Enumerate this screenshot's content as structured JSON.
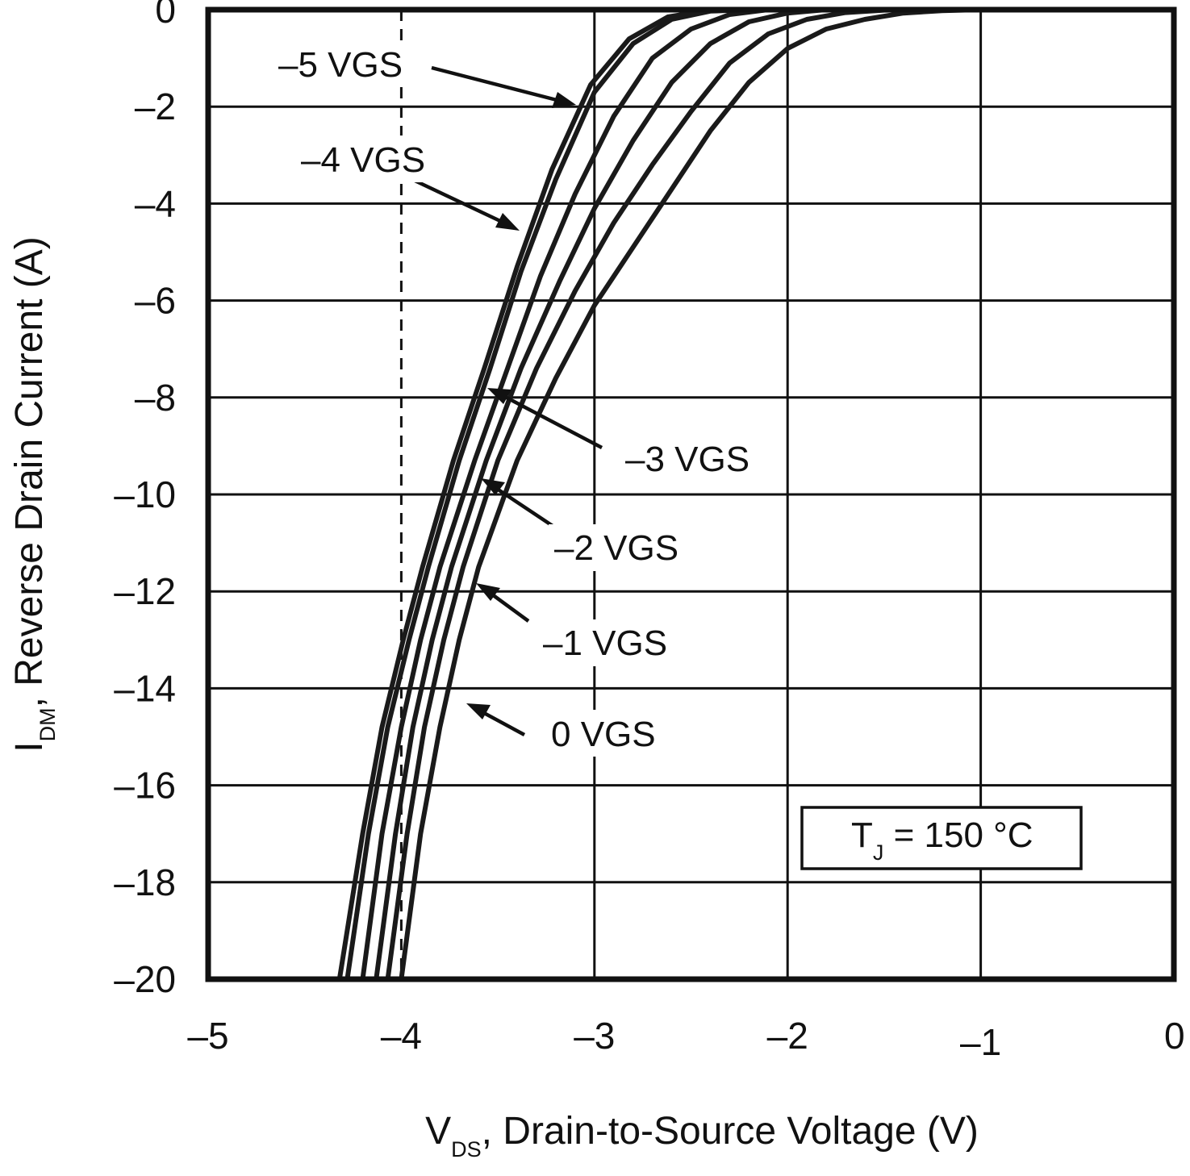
{
  "chart_data": {
    "type": "line",
    "title": "",
    "xlabel": {
      "main": "V",
      "sub": "DS",
      "rest": ", Drain-to-Source Voltage (V)"
    },
    "ylabel": {
      "main": "I",
      "sub": "DM",
      "rest": ", Reverse Drain Current (A)"
    },
    "xlim": [
      -5,
      0
    ],
    "ylim": [
      -20,
      0
    ],
    "grid": true,
    "x_ticks": [
      {
        "value": -5,
        "label": "–5"
      },
      {
        "value": -4,
        "label": "–4"
      },
      {
        "value": -3,
        "label": "–3"
      },
      {
        "value": -2,
        "label": "–2"
      },
      {
        "value": -1,
        "label": "–1"
      },
      {
        "value": 0,
        "label": "0"
      }
    ],
    "y_ticks": [
      {
        "value": 0,
        "label": "0"
      },
      {
        "value": -2,
        "label": "–2"
      },
      {
        "value": -4,
        "label": "–4"
      },
      {
        "value": -6,
        "label": "–6"
      },
      {
        "value": -8,
        "label": "–8"
      },
      {
        "value": -10,
        "label": "–10"
      },
      {
        "value": -12,
        "label": "–12"
      },
      {
        "value": -14,
        "label": "–14"
      },
      {
        "value": -16,
        "label": "–16"
      },
      {
        "value": -18,
        "label": "–18"
      },
      {
        "value": -20,
        "label": "–20"
      }
    ],
    "series": [
      {
        "name": "0 VGS",
        "label": "0 VGS",
        "points": [
          [
            -4.0,
            -20
          ],
          [
            -3.9,
            -17.0
          ],
          [
            -3.8,
            -14.8
          ],
          [
            -3.7,
            -13.0
          ],
          [
            -3.6,
            -11.5
          ],
          [
            -3.4,
            -9.3
          ],
          [
            -3.2,
            -7.6
          ],
          [
            -3.0,
            -6.1
          ],
          [
            -2.8,
            -4.9
          ],
          [
            -2.6,
            -3.7
          ],
          [
            -2.4,
            -2.5
          ],
          [
            -2.2,
            -1.5
          ],
          [
            -2.0,
            -0.8
          ],
          [
            -1.8,
            -0.4
          ],
          [
            -1.6,
            -0.2
          ],
          [
            -1.4,
            -0.07
          ],
          [
            -1.2,
            -0.02
          ],
          [
            -1.0,
            0
          ],
          [
            -0.8,
            0
          ]
        ]
      },
      {
        "name": "-1 VGS",
        "label": "–1 VGS",
        "points": [
          [
            -4.07,
            -20
          ],
          [
            -3.97,
            -17.0
          ],
          [
            -3.88,
            -14.8
          ],
          [
            -3.78,
            -13.0
          ],
          [
            -3.68,
            -11.5
          ],
          [
            -3.5,
            -9.3
          ],
          [
            -3.3,
            -7.4
          ],
          [
            -3.1,
            -5.8
          ],
          [
            -2.9,
            -4.4
          ],
          [
            -2.7,
            -3.2
          ],
          [
            -2.5,
            -2.1
          ],
          [
            -2.3,
            -1.1
          ],
          [
            -2.1,
            -0.5
          ],
          [
            -1.9,
            -0.2
          ],
          [
            -1.7,
            -0.06
          ],
          [
            -1.5,
            -0.01
          ],
          [
            -1.3,
            0
          ]
        ]
      },
      {
        "name": "-2 VGS",
        "label": "–2 VGS",
        "points": [
          [
            -4.13,
            -20
          ],
          [
            -4.03,
            -17.0
          ],
          [
            -3.94,
            -14.8
          ],
          [
            -3.84,
            -13.0
          ],
          [
            -3.74,
            -11.5
          ],
          [
            -3.56,
            -9.3
          ],
          [
            -3.38,
            -7.4
          ],
          [
            -3.18,
            -5.6
          ],
          [
            -3.0,
            -4.1
          ],
          [
            -2.8,
            -2.7
          ],
          [
            -2.6,
            -1.5
          ],
          [
            -2.4,
            -0.7
          ],
          [
            -2.2,
            -0.25
          ],
          [
            -2.0,
            -0.07
          ],
          [
            -1.8,
            0
          ]
        ]
      },
      {
        "name": "-3 VGS",
        "label": "–3 VGS",
        "points": [
          [
            -4.2,
            -20
          ],
          [
            -4.1,
            -17.0
          ],
          [
            -4.0,
            -14.8
          ],
          [
            -3.9,
            -13.0
          ],
          [
            -3.8,
            -11.5
          ],
          [
            -3.62,
            -9.3
          ],
          [
            -3.45,
            -7.4
          ],
          [
            -3.28,
            -5.5
          ],
          [
            -3.1,
            -3.8
          ],
          [
            -2.9,
            -2.2
          ],
          [
            -2.7,
            -1.0
          ],
          [
            -2.5,
            -0.4
          ],
          [
            -2.3,
            -0.1
          ],
          [
            -2.1,
            0
          ]
        ]
      },
      {
        "name": "-4 VGS",
        "label": "–4 VGS",
        "points": [
          [
            -4.28,
            -20
          ],
          [
            -4.17,
            -17.0
          ],
          [
            -4.07,
            -14.8
          ],
          [
            -3.96,
            -13.0
          ],
          [
            -3.86,
            -11.5
          ],
          [
            -3.7,
            -9.3
          ],
          [
            -3.54,
            -7.4
          ],
          [
            -3.38,
            -5.4
          ],
          [
            -3.2,
            -3.5
          ],
          [
            -3.0,
            -1.7
          ],
          [
            -2.8,
            -0.7
          ],
          [
            -2.6,
            -0.2
          ],
          [
            -2.4,
            -0.03
          ],
          [
            -2.2,
            0
          ]
        ]
      },
      {
        "name": "-5 VGS",
        "label": "–5 VGS",
        "points": [
          [
            -4.32,
            -20
          ],
          [
            -4.2,
            -17.0
          ],
          [
            -4.1,
            -14.8
          ],
          [
            -3.99,
            -13.0
          ],
          [
            -3.89,
            -11.5
          ],
          [
            -3.73,
            -9.3
          ],
          [
            -3.57,
            -7.4
          ],
          [
            -3.4,
            -5.3
          ],
          [
            -3.22,
            -3.3
          ],
          [
            -3.02,
            -1.55
          ],
          [
            -2.82,
            -0.6
          ],
          [
            -2.62,
            -0.15
          ],
          [
            -2.42,
            -0.02
          ],
          [
            -2.2,
            0
          ]
        ]
      }
    ],
    "annotations": [
      {
        "text": "–5 VGS",
        "series": "-5 VGS"
      },
      {
        "text": "–4 VGS",
        "series": "-4 VGS"
      },
      {
        "text": "–3 VGS",
        "series": "-3 VGS"
      },
      {
        "text": "–2 VGS",
        "series": "-2 VGS"
      },
      {
        "text": "–1 VGS",
        "series": "-1 VGS"
      },
      {
        "text": "0 VGS",
        "series": "0 VGS"
      }
    ],
    "condition": {
      "main": "T",
      "sub": "J",
      "rest": " = 150 °C"
    }
  }
}
